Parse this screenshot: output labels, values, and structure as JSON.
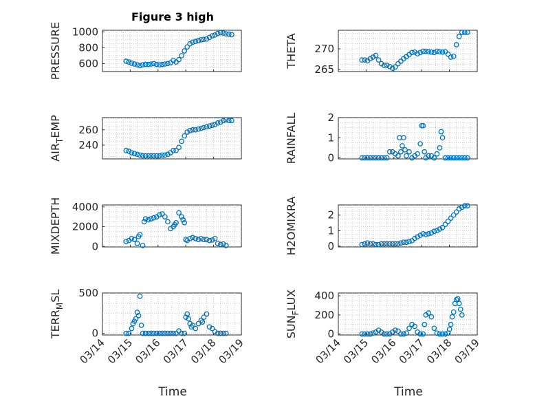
{
  "title": "Figure 3 high",
  "xlabel": "Time",
  "colors": {
    "marker": "#0072BD",
    "axis": "#262626",
    "grid": "#c8c8c8"
  },
  "chart_data": [
    {
      "type": "scatter",
      "name": "PRESSURE",
      "ylabel": "PRESSURE",
      "xlim": [
        14,
        19
      ],
      "ylim": [
        500,
        1020
      ],
      "yticks": [
        600,
        800,
        1000
      ],
      "grid": true,
      "x": [
        14.85,
        14.95,
        15.05,
        15.15,
        15.25,
        15.35,
        15.45,
        15.55,
        15.65,
        15.75,
        15.85,
        15.95,
        16.05,
        16.15,
        16.25,
        16.35,
        16.45,
        16.55,
        16.65,
        16.75,
        16.85,
        16.95,
        17.05,
        17.15,
        17.25,
        17.35,
        17.45,
        17.55,
        17.65,
        17.75,
        17.85,
        17.95,
        18.05,
        18.15,
        18.25,
        18.35,
        18.45,
        18.55,
        18.65
      ],
      "y": [
        630,
        620,
        605,
        595,
        585,
        575,
        585,
        590,
        590,
        595,
        600,
        590,
        585,
        590,
        595,
        600,
        610,
        640,
        620,
        650,
        700,
        760,
        810,
        850,
        870,
        880,
        890,
        900,
        905,
        910,
        930,
        950,
        960,
        980,
        990,
        985,
        975,
        970,
        965
      ]
    },
    {
      "type": "scatter",
      "name": "THETA",
      "ylabel": "THETA",
      "xlim": [
        14,
        19
      ],
      "ylim": [
        264.5,
        274.5
      ],
      "yticks": [
        265,
        270
      ],
      "grid": true,
      "x": [
        14.85,
        14.95,
        15.05,
        15.15,
        15.25,
        15.35,
        15.45,
        15.55,
        15.65,
        15.75,
        15.85,
        15.95,
        16.05,
        16.15,
        16.25,
        16.35,
        16.45,
        16.55,
        16.65,
        16.75,
        16.85,
        16.95,
        17.05,
        17.15,
        17.25,
        17.35,
        17.45,
        17.55,
        17.65,
        17.75,
        17.85,
        17.95,
        18.05,
        18.15,
        18.25,
        18.35,
        18.45,
        18.55,
        18.65
      ],
      "y": [
        267.3,
        267.3,
        267.1,
        267.6,
        268.0,
        268.4,
        267.3,
        266.4,
        266.0,
        266.0,
        265.7,
        265.3,
        265.6,
        266.4,
        267.0,
        267.6,
        268.1,
        268.6,
        269.1,
        269.2,
        268.8,
        269.1,
        269.4,
        269.4,
        269.3,
        269.2,
        269.1,
        269.4,
        269.3,
        269.2,
        269.3,
        268.7,
        268.0,
        268.2,
        271.0,
        273.0,
        274.0,
        274.0,
        274.0
      ]
    },
    {
      "type": "scatter",
      "name": "AIR_TEMP",
      "ylabel": "AIR_TEMP",
      "xlim": [
        14,
        19
      ],
      "ylim": [
        222,
        276
      ],
      "yticks": [
        240,
        260
      ],
      "grid": true,
      "x": [
        14.85,
        14.95,
        15.05,
        15.15,
        15.25,
        15.35,
        15.45,
        15.55,
        15.65,
        15.75,
        15.85,
        15.95,
        16.05,
        16.15,
        16.25,
        16.35,
        16.45,
        16.55,
        16.65,
        16.75,
        16.85,
        16.95,
        17.05,
        17.15,
        17.25,
        17.35,
        17.45,
        17.55,
        17.65,
        17.75,
        17.85,
        17.95,
        18.05,
        18.15,
        18.25,
        18.35,
        18.45,
        18.55,
        18.65
      ],
      "y": [
        233,
        232,
        230,
        229,
        228,
        227,
        226,
        226,
        226,
        226,
        226,
        226,
        226,
        227,
        227,
        228,
        230,
        233,
        233,
        237,
        245,
        252,
        257,
        259,
        260,
        260,
        261,
        262,
        263,
        264,
        265,
        266,
        267,
        269,
        270,
        272,
        273,
        272,
        272
      ]
    },
    {
      "type": "scatter",
      "name": "RAINFALL",
      "ylabel": "RAINFALL",
      "xlim": [
        14,
        19
      ],
      "ylim": [
        -0.05,
        2.0
      ],
      "yticks": [
        0,
        1,
        2
      ],
      "grid": true,
      "x": [
        14.85,
        14.95,
        15.05,
        15.15,
        15.25,
        15.35,
        15.45,
        15.55,
        15.65,
        15.75,
        15.85,
        15.95,
        16.05,
        16.15,
        16.2,
        16.25,
        16.3,
        16.35,
        16.4,
        16.45,
        16.55,
        16.65,
        16.75,
        16.85,
        16.95,
        17.0,
        17.05,
        17.1,
        17.15,
        17.25,
        17.35,
        17.45,
        17.55,
        17.65,
        17.7,
        17.75,
        17.85,
        17.95,
        18.05,
        18.15,
        18.25,
        18.35,
        18.45,
        18.55,
        18.65
      ],
      "y": [
        0,
        0,
        0,
        0,
        0,
        0,
        0,
        0,
        0,
        0,
        0.3,
        0.3,
        0.2,
        0.1,
        1.0,
        0.3,
        0.6,
        1.0,
        0.4,
        0.1,
        0.3,
        0.0,
        0.1,
        0.2,
        0.7,
        1.6,
        1.6,
        0.3,
        0.0,
        0.1,
        0.1,
        0.0,
        0.2,
        0.5,
        1.3,
        1.0,
        0.0,
        0.0,
        0.0,
        0.0,
        0.0,
        0.0,
        0.0,
        0.0,
        0.0
      ]
    },
    {
      "type": "scatter",
      "name": "MIXDEPTH",
      "ylabel": "MIXDEPTH",
      "xlim": [
        14,
        19
      ],
      "ylim": [
        -50,
        4200
      ],
      "yticks": [
        0,
        2000,
        4000
      ],
      "grid": true,
      "x": [
        14.85,
        14.95,
        15.05,
        15.15,
        15.25,
        15.3,
        15.35,
        15.45,
        15.5,
        15.55,
        15.65,
        15.75,
        15.85,
        15.95,
        16.05,
        16.15,
        16.25,
        16.35,
        16.45,
        16.55,
        16.6,
        16.65,
        16.75,
        16.85,
        16.9,
        16.95,
        17.0,
        17.05,
        17.15,
        17.25,
        17.35,
        17.45,
        17.55,
        17.65,
        17.75,
        17.85,
        17.95,
        18.05,
        18.15,
        18.25,
        18.35,
        18.45
      ],
      "y": [
        500,
        600,
        800,
        700,
        300,
        1000,
        1200,
        100,
        2500,
        2800,
        2700,
        2800,
        2900,
        3000,
        3200,
        3300,
        3000,
        2500,
        1800,
        2000,
        2200,
        2400,
        3400,
        3000,
        2700,
        2400,
        700,
        600,
        800,
        900,
        800,
        700,
        800,
        700,
        700,
        600,
        650,
        800,
        300,
        200,
        250,
        100
      ]
    },
    {
      "type": "scatter",
      "name": "H2OMIXRA",
      "ylabel": "H2OMIXRA",
      "xlim": [
        14,
        19
      ],
      "ylim": [
        -0.05,
        2.65
      ],
      "yticks": [
        0,
        1,
        2
      ],
      "grid": true,
      "x": [
        14.85,
        14.95,
        15.05,
        15.15,
        15.25,
        15.35,
        15.45,
        15.55,
        15.65,
        15.75,
        15.85,
        15.95,
        16.05,
        16.15,
        16.25,
        16.35,
        16.45,
        16.55,
        16.65,
        16.75,
        16.85,
        16.95,
        17.05,
        17.15,
        17.25,
        17.35,
        17.45,
        17.55,
        17.65,
        17.75,
        17.85,
        17.95,
        18.05,
        18.15,
        18.25,
        18.35,
        18.45,
        18.55,
        18.65
      ],
      "y": [
        0.1,
        0.15,
        0.2,
        0.15,
        0.15,
        0.1,
        0.1,
        0.15,
        0.15,
        0.15,
        0.15,
        0.15,
        0.15,
        0.15,
        0.2,
        0.25,
        0.25,
        0.3,
        0.35,
        0.5,
        0.6,
        0.7,
        0.8,
        0.75,
        0.8,
        0.85,
        0.95,
        1.0,
        1.1,
        1.2,
        1.4,
        1.6,
        1.8,
        2.0,
        2.2,
        2.4,
        2.5,
        2.6,
        2.6
      ]
    },
    {
      "type": "scatter",
      "name": "TERR_MSL",
      "ylabel": "TERR_MSL",
      "xlim": [
        14,
        19
      ],
      "ylim": [
        -20,
        500
      ],
      "yticks": [
        0,
        500
      ],
      "grid": true,
      "x": [
        14.85,
        14.95,
        15.05,
        15.1,
        15.15,
        15.2,
        15.25,
        15.3,
        15.35,
        15.4,
        15.45,
        15.55,
        15.65,
        15.75,
        15.85,
        15.95,
        16.05,
        16.15,
        16.25,
        16.35,
        16.45,
        16.55,
        16.65,
        16.75,
        16.85,
        16.95,
        17.0,
        17.05,
        17.1,
        17.15,
        17.2,
        17.25,
        17.35,
        17.45,
        17.55,
        17.6,
        17.65,
        17.75,
        17.85,
        17.95,
        18.05,
        18.15,
        18.25,
        18.35,
        18.45
      ],
      "y": [
        0,
        0,
        60,
        120,
        150,
        180,
        260,
        220,
        460,
        100,
        0,
        0,
        0,
        0,
        0,
        0,
        0,
        0,
        0,
        0,
        0,
        0,
        0,
        30,
        0,
        0,
        200,
        240,
        180,
        120,
        80,
        100,
        60,
        120,
        160,
        140,
        200,
        240,
        80,
        60,
        20,
        0,
        0,
        0,
        0
      ]
    },
    {
      "type": "scatter",
      "name": "SUN_FLUX",
      "ylabel": "SUN_FLUX",
      "xlim": [
        14,
        19
      ],
      "ylim": [
        -10,
        430
      ],
      "yticks": [
        0,
        200,
        400
      ],
      "grid": true,
      "x": [
        14.85,
        14.95,
        15.05,
        15.15,
        15.25,
        15.35,
        15.45,
        15.55,
        15.65,
        15.75,
        15.85,
        15.95,
        16.05,
        16.15,
        16.25,
        16.35,
        16.45,
        16.55,
        16.65,
        16.75,
        16.85,
        16.95,
        17.05,
        17.1,
        17.15,
        17.25,
        17.35,
        17.45,
        17.55,
        17.65,
        17.75,
        17.85,
        17.95,
        18.0,
        18.05,
        18.1,
        18.15,
        18.2,
        18.25,
        18.3,
        18.35,
        18.4,
        18.45
      ],
      "y": [
        0,
        0,
        0,
        0,
        10,
        20,
        40,
        20,
        0,
        0,
        0,
        20,
        40,
        30,
        0,
        0,
        10,
        60,
        100,
        80,
        20,
        0,
        0,
        100,
        200,
        220,
        180,
        60,
        10,
        0,
        0,
        0,
        10,
        50,
        100,
        180,
        230,
        320,
        360,
        370,
        320,
        260,
        200
      ]
    }
  ],
  "ylabel_display": [
    {
      "base": "PRESSURE",
      "sub": "",
      "tail": ""
    },
    {
      "base": "THETA",
      "sub": "",
      "tail": ""
    },
    {
      "base": "AIR",
      "sub": "T",
      "tail": "EMP"
    },
    {
      "base": "RAINFALL",
      "sub": "",
      "tail": ""
    },
    {
      "base": "MIXDEPTH",
      "sub": "",
      "tail": ""
    },
    {
      "base": "H2OMIXRA",
      "sub": "",
      "tail": ""
    },
    {
      "base": "TERR",
      "sub": "M",
      "tail": "SL"
    },
    {
      "base": "SUN",
      "sub": "F",
      "tail": "LUX"
    }
  ],
  "xtick_labels": [
    "03/14",
    "03/15",
    "03/16",
    "03/17",
    "03/18",
    "03/19"
  ],
  "xtick_values": [
    14,
    15,
    16,
    17,
    18,
    19
  ]
}
